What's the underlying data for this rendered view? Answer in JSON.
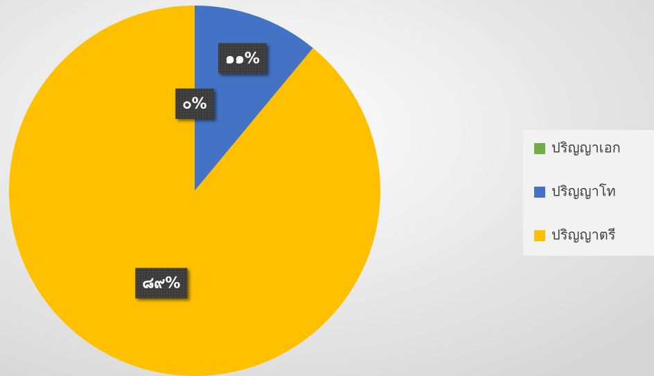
{
  "chart_data": {
    "type": "pie",
    "categories": [
      "ปริญญาเอก",
      "ปริญญาโท",
      "ปริญญาตรี"
    ],
    "values": [
      0,
      11,
      89
    ],
    "value_labels": [
      "๐%",
      "๑๑%",
      "๘๙%"
    ],
    "colors": [
      "#70ad47",
      "#4472c4",
      "#ffc000"
    ],
    "legend": "right"
  }
}
